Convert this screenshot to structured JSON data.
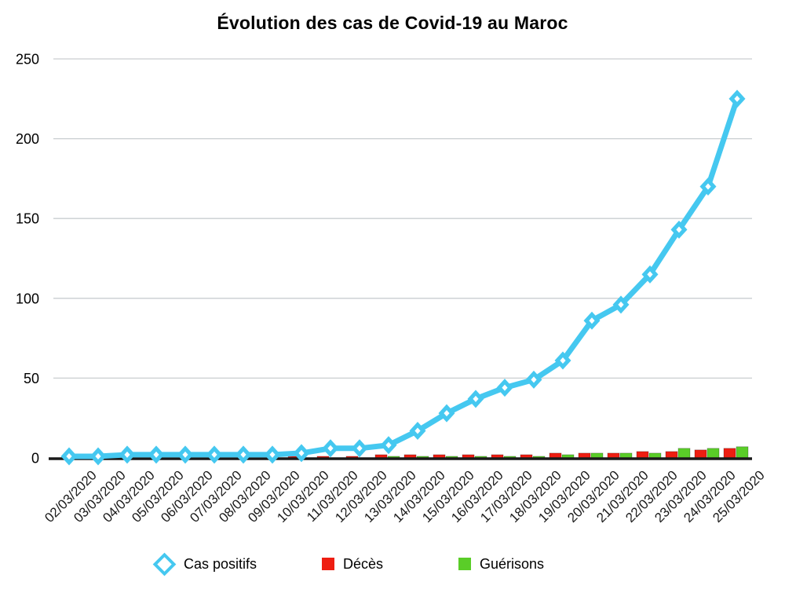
{
  "title": "Évolution des cas de Covid-19 au Maroc",
  "legend": [
    {
      "label": "Cas positifs",
      "marker": "diamond-outline",
      "color": "#45c8f0"
    },
    {
      "label": "Décès",
      "marker": "square",
      "color": "#ee1e12"
    },
    {
      "label": "Guérisons",
      "marker": "square",
      "color": "#5acd28"
    }
  ],
  "chart_data": {
    "type": "line",
    "title": "Évolution des cas de Covid-19 au Maroc",
    "x": [
      "02/03/2020",
      "03/03/2020",
      "04/03/2020",
      "05/03/2020",
      "06/03/2020",
      "07/03/2020",
      "08/03/2020",
      "09/03/2020",
      "10/03/2020",
      "11/03/2020",
      "12/03/2020",
      "13/03/2020",
      "14/03/2020",
      "15/03/2020",
      "16/03/2020",
      "17/03/2020",
      "18/03/2020",
      "19/03/2020",
      "20/03/2020",
      "21/03/2020",
      "22/03/2020",
      "23/03/2020",
      "24/03/2020",
      "25/03/2020"
    ],
    "series": [
      {
        "name": "Cas positifs",
        "type": "line",
        "marker": "diamond",
        "color": "#45c8f0",
        "values": [
          1,
          1,
          2,
          2,
          2,
          2,
          2,
          2,
          3,
          6,
          6,
          8,
          17,
          28,
          37,
          44,
          49,
          61,
          86,
          96,
          115,
          143,
          170,
          225
        ]
      },
      {
        "name": "Décès",
        "type": "bar",
        "color": "#ee1e12",
        "values": [
          0,
          0,
          0,
          0,
          0,
          0,
          0,
          0,
          1,
          1,
          1,
          2,
          2,
          2,
          2,
          2,
          2,
          3,
          3,
          3,
          4,
          4,
          5,
          6
        ]
      },
      {
        "name": "Guérisons",
        "type": "bar",
        "color": "#5acd28",
        "values": [
          0,
          0,
          0,
          0,
          0,
          0,
          0,
          0,
          0,
          0,
          0,
          1,
          1,
          1,
          1,
          1,
          1,
          2,
          3,
          3,
          3,
          6,
          6,
          7
        ]
      }
    ],
    "xlabel": "",
    "ylabel": "",
    "ylim": [
      0,
      250
    ],
    "yticks": [
      0,
      50,
      100,
      150,
      200,
      250
    ],
    "grid": "horizontal",
    "gridline_color": "#c9ced0",
    "axis_color": "#1a1a1a",
    "legend_position": "bottom"
  }
}
